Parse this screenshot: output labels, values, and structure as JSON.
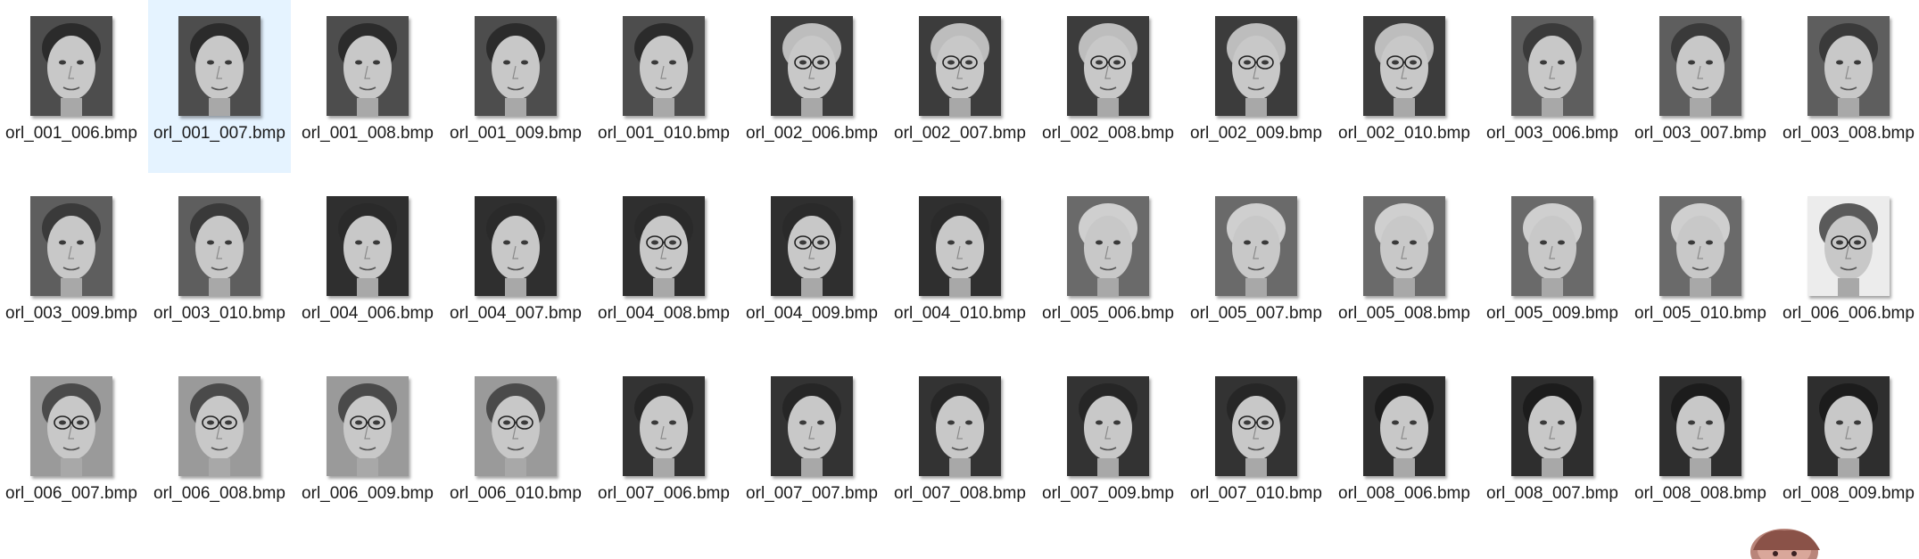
{
  "explorer": {
    "files": [
      {
        "name": "orl_001_006.bmp",
        "selected": false,
        "glasses": false,
        "tone": "#4d4d4d",
        "hair": "#2b2b2b"
      },
      {
        "name": "orl_001_007.bmp",
        "selected": true,
        "glasses": false,
        "tone": "#4d4d4d",
        "hair": "#2b2b2b"
      },
      {
        "name": "orl_001_008.bmp",
        "selected": false,
        "glasses": false,
        "tone": "#4d4d4d",
        "hair": "#2b2b2b"
      },
      {
        "name": "orl_001_009.bmp",
        "selected": false,
        "glasses": false,
        "tone": "#4d4d4d",
        "hair": "#2b2b2b"
      },
      {
        "name": "orl_001_010.bmp",
        "selected": false,
        "glasses": false,
        "tone": "#4d4d4d",
        "hair": "#2b2b2b"
      },
      {
        "name": "orl_002_006.bmp",
        "selected": false,
        "glasses": true,
        "tone": "#3c3c3c",
        "hair": "#bdbdbd"
      },
      {
        "name": "orl_002_007.bmp",
        "selected": false,
        "glasses": true,
        "tone": "#3c3c3c",
        "hair": "#bdbdbd"
      },
      {
        "name": "orl_002_008.bmp",
        "selected": false,
        "glasses": true,
        "tone": "#3c3c3c",
        "hair": "#bdbdbd"
      },
      {
        "name": "orl_002_009.bmp",
        "selected": false,
        "glasses": true,
        "tone": "#3c3c3c",
        "hair": "#bdbdbd"
      },
      {
        "name": "orl_002_010.bmp",
        "selected": false,
        "glasses": true,
        "tone": "#3c3c3c",
        "hair": "#bdbdbd"
      },
      {
        "name": "orl_003_006.bmp",
        "selected": false,
        "glasses": false,
        "tone": "#5e5e5e",
        "hair": "#3a3a3a"
      },
      {
        "name": "orl_003_007.bmp",
        "selected": false,
        "glasses": false,
        "tone": "#5e5e5e",
        "hair": "#3a3a3a"
      },
      {
        "name": "orl_003_008.bmp",
        "selected": false,
        "glasses": false,
        "tone": "#5e5e5e",
        "hair": "#3a3a3a"
      },
      {
        "name": "orl_003_009.bmp",
        "selected": false,
        "glasses": false,
        "tone": "#5e5e5e",
        "hair": "#3a3a3a"
      },
      {
        "name": "orl_003_010.bmp",
        "selected": false,
        "glasses": false,
        "tone": "#5e5e5e",
        "hair": "#3a3a3a"
      },
      {
        "name": "orl_004_006.bmp",
        "selected": false,
        "glasses": false,
        "tone": "#2f2f2f",
        "hair": "#2a2a2a"
      },
      {
        "name": "orl_004_007.bmp",
        "selected": false,
        "glasses": false,
        "tone": "#2f2f2f",
        "hair": "#2a2a2a"
      },
      {
        "name": "orl_004_008.bmp",
        "selected": false,
        "glasses": true,
        "tone": "#2f2f2f",
        "hair": "#2a2a2a"
      },
      {
        "name": "orl_004_009.bmp",
        "selected": false,
        "glasses": true,
        "tone": "#2f2f2f",
        "hair": "#2a2a2a"
      },
      {
        "name": "orl_004_010.bmp",
        "selected": false,
        "glasses": false,
        "tone": "#2f2f2f",
        "hair": "#2a2a2a"
      },
      {
        "name": "orl_005_006.bmp",
        "selected": false,
        "glasses": false,
        "tone": "#6a6a6a",
        "hair": "#cfcfcf"
      },
      {
        "name": "orl_005_007.bmp",
        "selected": false,
        "glasses": false,
        "tone": "#6a6a6a",
        "hair": "#cfcfcf"
      },
      {
        "name": "orl_005_008.bmp",
        "selected": false,
        "glasses": false,
        "tone": "#6a6a6a",
        "hair": "#cfcfcf"
      },
      {
        "name": "orl_005_009.bmp",
        "selected": false,
        "glasses": false,
        "tone": "#6a6a6a",
        "hair": "#cfcfcf"
      },
      {
        "name": "orl_005_010.bmp",
        "selected": false,
        "glasses": false,
        "tone": "#6a6a6a",
        "hair": "#cfcfcf"
      },
      {
        "name": "orl_006_006.bmp",
        "selected": false,
        "glasses": true,
        "tone": "#ececec",
        "hair": "#5a5a5a"
      },
      {
        "name": "orl_006_007.bmp",
        "selected": false,
        "glasses": true,
        "tone": "#9a9a9a",
        "hair": "#4a4a4a"
      },
      {
        "name": "orl_006_008.bmp",
        "selected": false,
        "glasses": true,
        "tone": "#9a9a9a",
        "hair": "#4a4a4a"
      },
      {
        "name": "orl_006_009.bmp",
        "selected": false,
        "glasses": true,
        "tone": "#9a9a9a",
        "hair": "#4a4a4a"
      },
      {
        "name": "orl_006_010.bmp",
        "selected": false,
        "glasses": true,
        "tone": "#9a9a9a",
        "hair": "#4a4a4a"
      },
      {
        "name": "orl_007_006.bmp",
        "selected": false,
        "glasses": false,
        "tone": "#333333",
        "hair": "#262626"
      },
      {
        "name": "orl_007_007.bmp",
        "selected": false,
        "glasses": false,
        "tone": "#333333",
        "hair": "#262626"
      },
      {
        "name": "orl_007_008.bmp",
        "selected": false,
        "glasses": false,
        "tone": "#333333",
        "hair": "#262626"
      },
      {
        "name": "orl_007_009.bmp",
        "selected": false,
        "glasses": false,
        "tone": "#333333",
        "hair": "#262626"
      },
      {
        "name": "orl_007_010.bmp",
        "selected": false,
        "glasses": true,
        "tone": "#333333",
        "hair": "#262626"
      },
      {
        "name": "orl_008_006.bmp",
        "selected": false,
        "glasses": false,
        "tone": "#2e2e2e",
        "hair": "#1c1c1c"
      },
      {
        "name": "orl_008_007.bmp",
        "selected": false,
        "glasses": false,
        "tone": "#2e2e2e",
        "hair": "#1c1c1c"
      },
      {
        "name": "orl_008_008.bmp",
        "selected": false,
        "glasses": false,
        "tone": "#2e2e2e",
        "hair": "#1c1c1c"
      },
      {
        "name": "orl_008_009.bmp",
        "selected": false,
        "glasses": false,
        "tone": "#2e2e2e",
        "hair": "#1c1c1c"
      }
    ]
  },
  "colors": {
    "selection": "#e5f3ff",
    "text": "#1a1a1a",
    "background": "#ffffff"
  }
}
